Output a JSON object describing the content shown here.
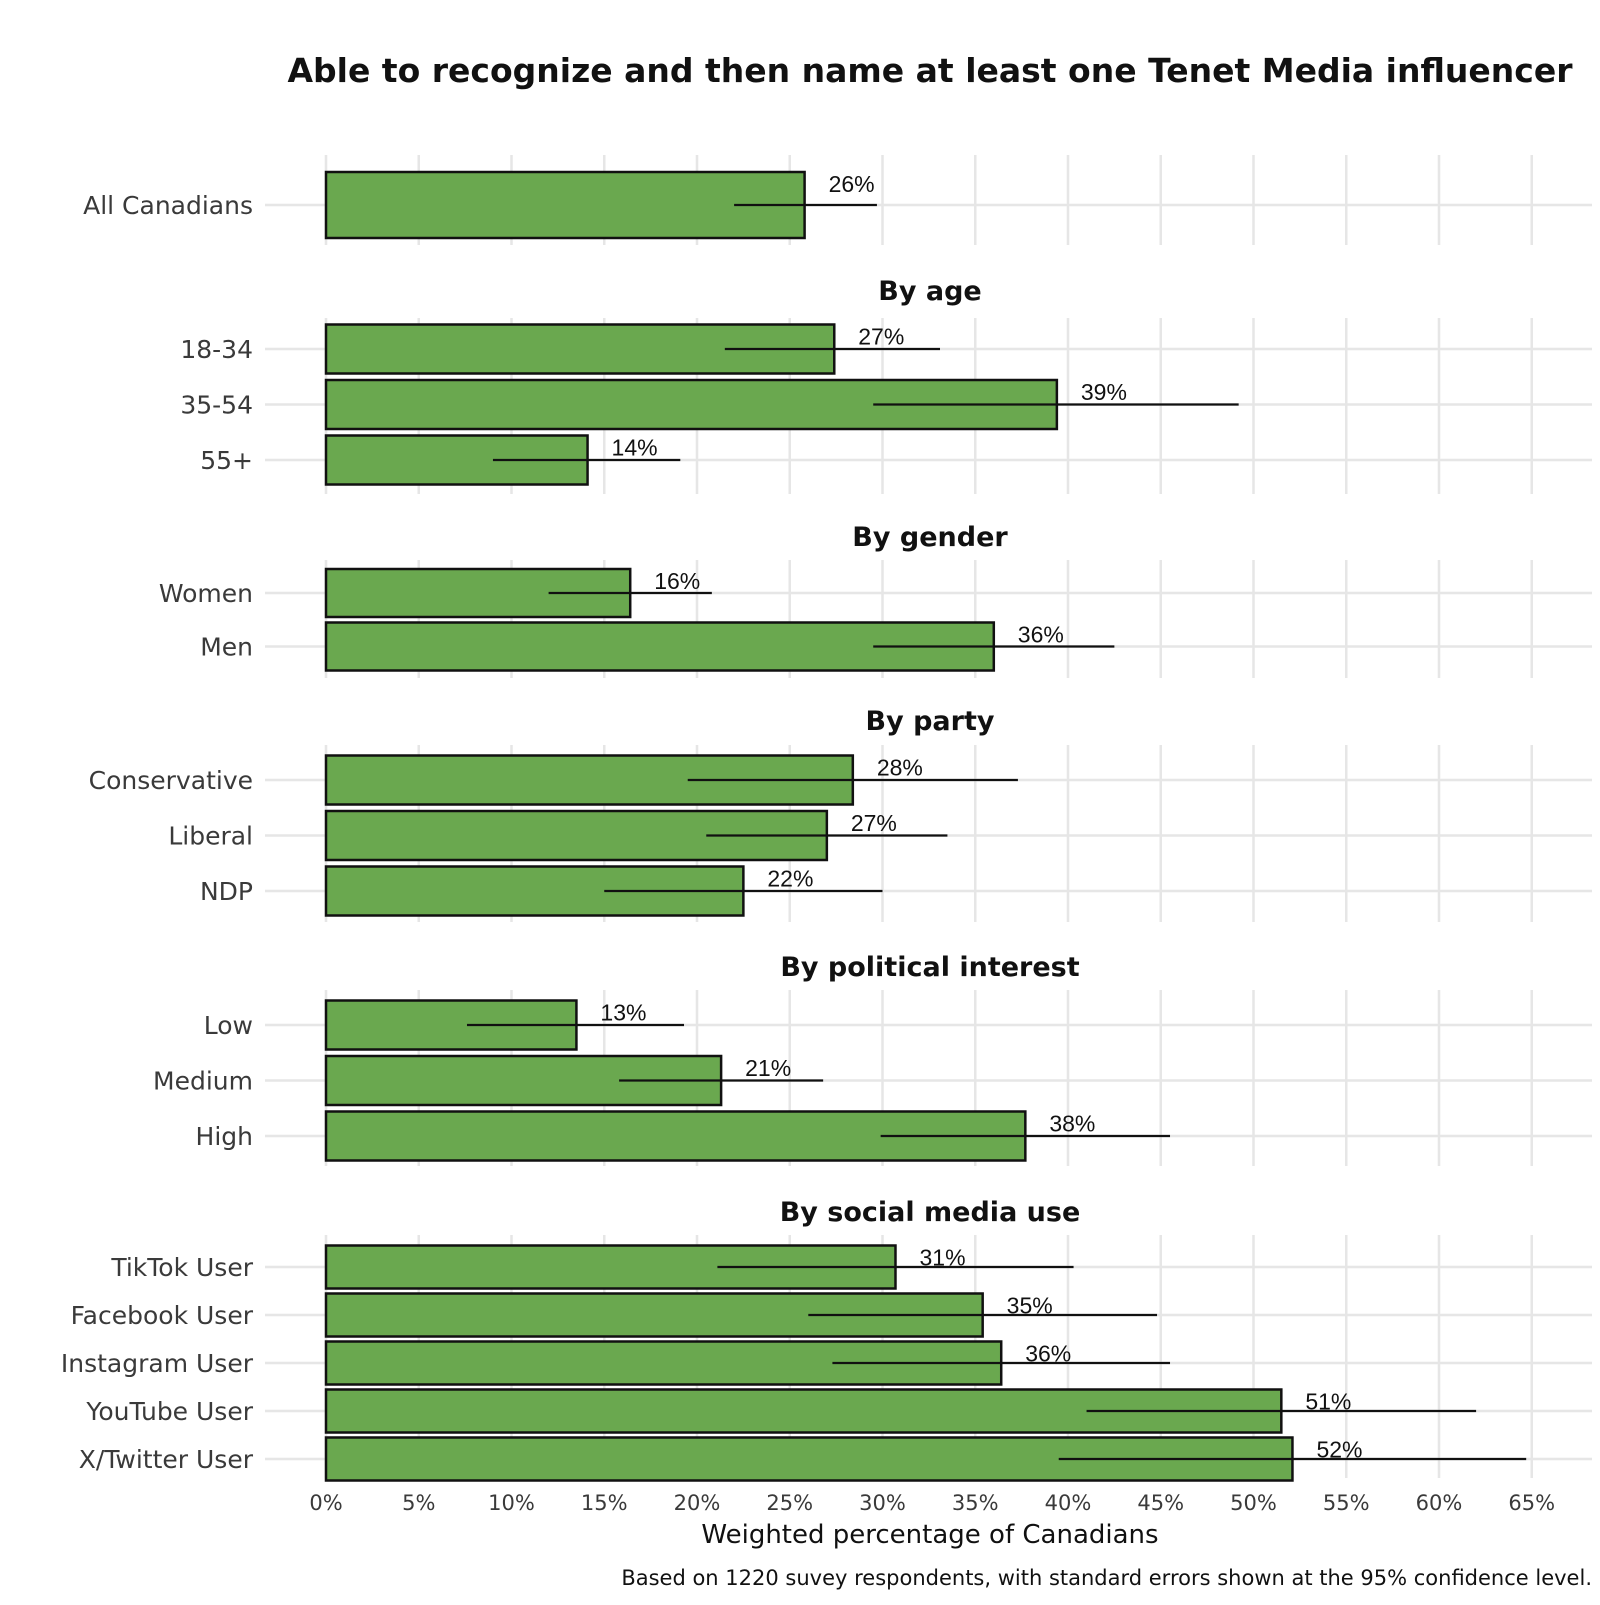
{
  "chart_data": {
    "type": "bar",
    "orientation": "horizontal",
    "title": "Able to recognize and then name at least one Tenet Media influencer",
    "xlabel": "Weighted percentage of Canadians",
    "caption": "Based on 1220 suvey respondents, with standard errors shown at the 95% confidence level.",
    "xlim": [
      0,
      65
    ],
    "x_ticks": [
      0,
      5,
      10,
      15,
      20,
      25,
      30,
      35,
      40,
      45,
      50,
      55,
      60,
      65
    ],
    "x_tick_labels": [
      "0%",
      "5%",
      "10%",
      "15%",
      "20%",
      "25%",
      "30%",
      "35%",
      "40%",
      "45%",
      "50%",
      "55%",
      "60%",
      "65%"
    ],
    "bar_color": "#6aa84f",
    "grid": true,
    "groups": [
      {
        "title": "",
        "bars": [
          {
            "category": "All Canadians",
            "value": 25.8,
            "label": "26%",
            "ci_low": 22.0,
            "ci_high": 29.7
          }
        ]
      },
      {
        "title": "By age",
        "bars": [
          {
            "category": "18-34",
            "value": 27.4,
            "label": "27%",
            "ci_low": 21.5,
            "ci_high": 33.1
          },
          {
            "category": "35-54",
            "value": 39.4,
            "label": "39%",
            "ci_low": 29.5,
            "ci_high": 49.2
          },
          {
            "category": "55+",
            "value": 14.1,
            "label": "14%",
            "ci_low": 9.0,
            "ci_high": 19.1
          }
        ]
      },
      {
        "title": "By gender",
        "bars": [
          {
            "category": "Women",
            "value": 16.4,
            "label": "16%",
            "ci_low": 12.0,
            "ci_high": 20.8
          },
          {
            "category": "Men",
            "value": 36.0,
            "label": "36%",
            "ci_low": 29.5,
            "ci_high": 42.5
          }
        ]
      },
      {
        "title": "By party",
        "bars": [
          {
            "category": "Conservative",
            "value": 28.4,
            "label": "28%",
            "ci_low": 19.5,
            "ci_high": 37.3
          },
          {
            "category": "Liberal",
            "value": 27.0,
            "label": "27%",
            "ci_low": 20.5,
            "ci_high": 33.5
          },
          {
            "category": "NDP",
            "value": 22.5,
            "label": "22%",
            "ci_low": 15.0,
            "ci_high": 30.0
          }
        ]
      },
      {
        "title": "By political interest",
        "bars": [
          {
            "category": "Low",
            "value": 13.5,
            "label": "13%",
            "ci_low": 7.6,
            "ci_high": 19.3
          },
          {
            "category": "Medium",
            "value": 21.3,
            "label": "21%",
            "ci_low": 15.8,
            "ci_high": 26.8
          },
          {
            "category": "High",
            "value": 37.7,
            "label": "38%",
            "ci_low": 29.9,
            "ci_high": 45.5
          }
        ]
      },
      {
        "title": "By social media use",
        "bars": [
          {
            "category": "TikTok User",
            "value": 30.7,
            "label": "31%",
            "ci_low": 21.1,
            "ci_high": 40.3
          },
          {
            "category": "Facebook User",
            "value": 35.4,
            "label": "35%",
            "ci_low": 26.0,
            "ci_high": 44.8
          },
          {
            "category": "Instagram User",
            "value": 36.4,
            "label": "36%",
            "ci_low": 27.3,
            "ci_high": 45.5
          },
          {
            "category": "YouTube User",
            "value": 51.5,
            "label": "51%",
            "ci_low": 41.0,
            "ci_high": 62.0
          },
          {
            "category": "X/Twitter User",
            "value": 52.1,
            "label": "52%",
            "ci_low": 39.5,
            "ci_high": 64.7
          }
        ]
      }
    ]
  }
}
